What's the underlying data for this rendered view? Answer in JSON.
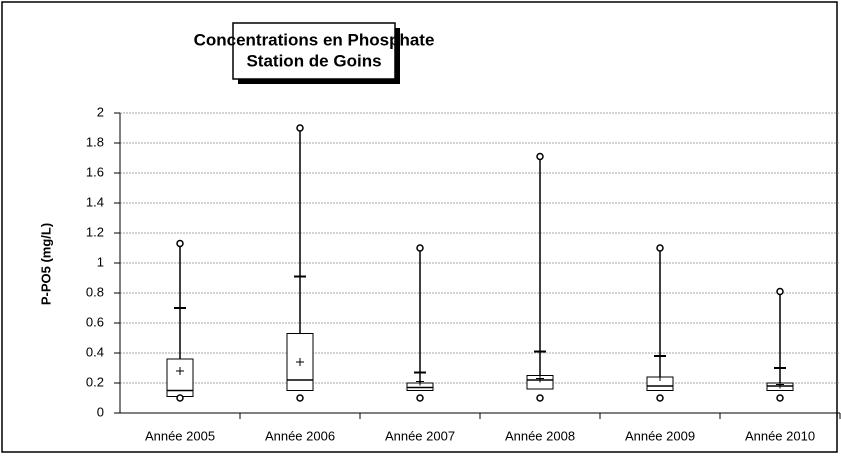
{
  "chart_data": {
    "type": "box",
    "title": "Concentrations en Phosphate",
    "subtitle": "Station de Goins",
    "y_label": "P-PO5 (mg/L)",
    "categories": [
      "Année 2005",
      "Année 2006",
      "Année 2007",
      "Année 2008",
      "Année 2009",
      "Année 2010"
    ],
    "min": [
      0.1,
      0.1,
      0.1,
      0.1,
      0.1,
      0.1
    ],
    "q1": [
      0.11,
      0.15,
      0.15,
      0.16,
      0.15,
      0.15
    ],
    "median": [
      0.15,
      0.22,
      0.17,
      0.22,
      0.18,
      0.18
    ],
    "q3": [
      0.36,
      0.53,
      0.2,
      0.25,
      0.24,
      0.2
    ],
    "mean": [
      0.28,
      0.34,
      0.21,
      0.23,
      0.24,
      0.19
    ],
    "whisker_high": [
      0.7,
      0.91,
      0.27,
      0.41,
      0.38,
      0.3
    ],
    "max": [
      1.13,
      1.9,
      1.1,
      1.71,
      1.1,
      0.81
    ],
    "color": "#000000",
    "ylim": [
      0,
      2
    ],
    "yticks": [
      0,
      0.2,
      0.4,
      0.6,
      0.8,
      1,
      1.2,
      1.4,
      1.6,
      1.8,
      2
    ],
    "grid": true
  }
}
